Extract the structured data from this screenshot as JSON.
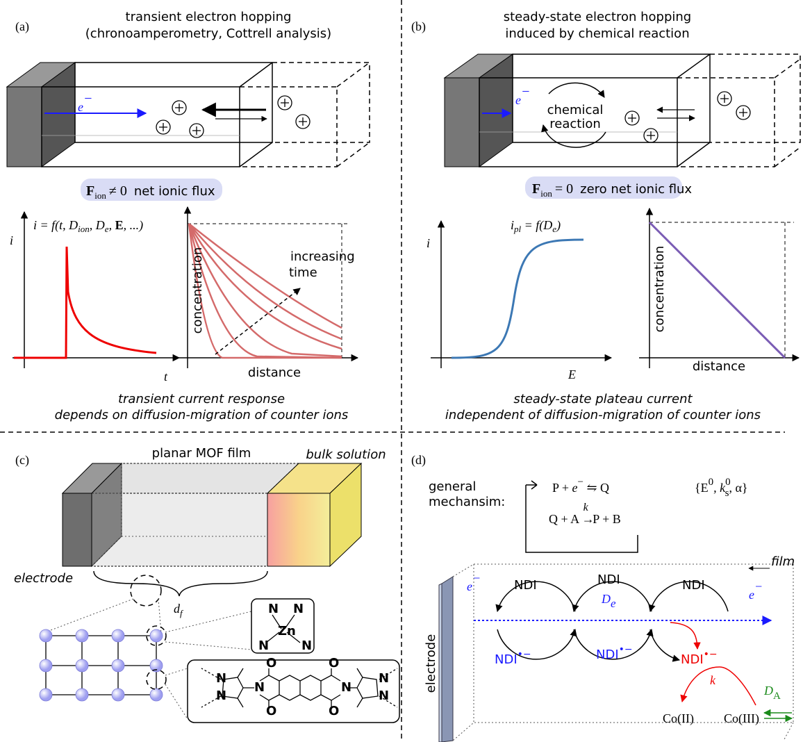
{
  "panel_a": {
    "label": "(a)",
    "title": [
      "transient electron hopping",
      "(chronoamperometry, Cottrell analysis)"
    ],
    "electron": [
      "e",
      "−"
    ],
    "flux": [
      "F",
      "ion",
      "≠ 0",
      "net ionic flux"
    ],
    "equation": [
      "i = f(t, D",
      "ion",
      ", D",
      "e",
      ", ",
      "E",
      ", ...)"
    ],
    "current_axis": "i",
    "time_axis": "t",
    "conc_axis": "concentration",
    "distance_axis": "distance",
    "time_arrow": [
      "increasing",
      "time"
    ],
    "caption": [
      "transient current response",
      "depends on diffusion-migration of counter ions"
    ]
  },
  "panel_b": {
    "label": "(b)",
    "title": [
      "steady-state electron hopping",
      "induced by chemical reaction"
    ],
    "electron": [
      "e",
      "−"
    ],
    "reaction": [
      "chemical",
      "reaction"
    ],
    "flux": [
      "F",
      "ion",
      "= 0",
      "zero net ionic flux"
    ],
    "equation": [
      "i",
      "pl",
      " = f(D",
      "e",
      ")"
    ],
    "current_axis": "i",
    "potential_axis": "E",
    "conc_axis": "concentration",
    "distance_axis": "distance",
    "caption": [
      "steady-state plateau current",
      "independent of diffusion-migration of counter ions"
    ]
  },
  "panel_c": {
    "label": "(c)",
    "film": "planar MOF film",
    "bulk": "bulk solution",
    "electrode": "electrode",
    "thickness": [
      "d",
      "f"
    ],
    "zn_node": {
      "metal": "Zn",
      "ligands": [
        "N",
        "N",
        "N",
        "N"
      ]
    },
    "linker": {
      "nitrogens": [
        "N",
        "N",
        "N",
        "N",
        "N",
        "N"
      ],
      "oxygens": [
        "O",
        "O",
        "O",
        "O"
      ]
    }
  },
  "panel_d": {
    "label": "(d)",
    "mechanism_label": [
      "general",
      "mechansim:"
    ],
    "reaction_1": [
      "P + ",
      "e",
      "−",
      " ⇋ Q"
    ],
    "parameters": [
      "{E",
      "0",
      ", k",
      "0",
      "s",
      ", α}"
    ],
    "reaction_2": [
      "Q + A ",
      "→",
      "k",
      " P + B"
    ],
    "film": "film",
    "electrode": "electrode",
    "electron_in": [
      "e",
      "−"
    ],
    "electron_out": [
      "e",
      "−"
    ],
    "ndi": [
      "NDI",
      "NDI",
      "NDI"
    ],
    "radicals": [
      [
        "NDI",
        "•−"
      ],
      [
        "NDI",
        "•−"
      ],
      [
        "NDI",
        "•−"
      ]
    ],
    "hopping": [
      "D",
      "e"
    ],
    "rate": "k",
    "products": [
      "Co(II)",
      "Co(III)"
    ],
    "mediator_diffusion": [
      "D",
      "A"
    ]
  }
}
